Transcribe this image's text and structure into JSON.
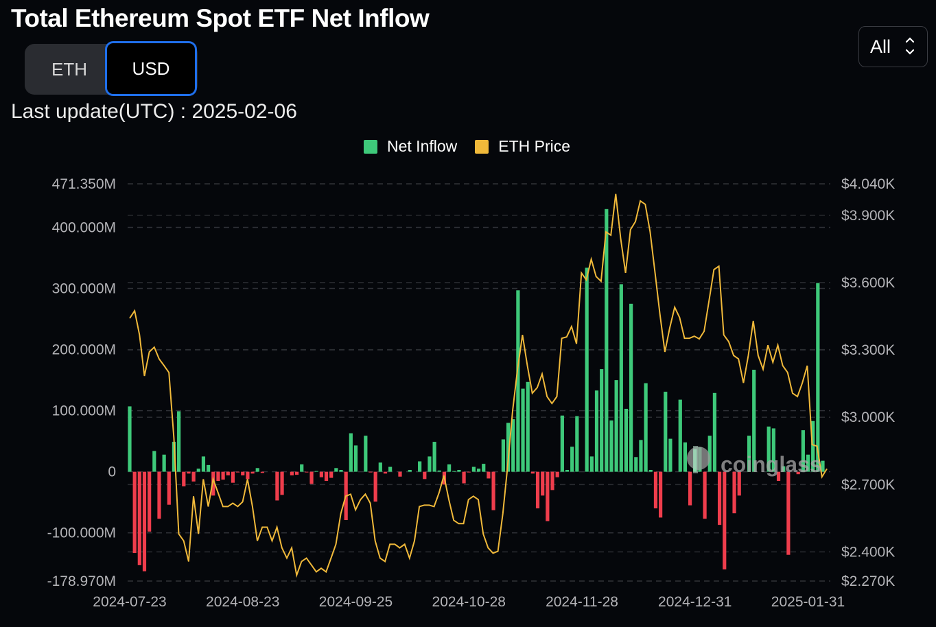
{
  "header": {
    "title": "Total Ethereum Spot ETF Net Inflow",
    "toggle": {
      "options": [
        "ETH",
        "USD"
      ],
      "selected": "USD"
    },
    "range_select": {
      "value": "All"
    },
    "last_update": "Last update(UTC) : 2025-02-06"
  },
  "colors": {
    "inflow_positive": "#3ec97a",
    "inflow_negative": "#ef3d4c",
    "price": "#f0b93a",
    "accent": "#1f6feb",
    "background": "#05070b"
  },
  "watermark": "coinglass",
  "chart_data": {
    "type": "bar",
    "title": "Total Ethereum Spot ETF Net Inflow",
    "legend": [
      {
        "name": "Net Inflow",
        "color": "#3ec97a"
      },
      {
        "name": "ETH Price",
        "color": "#f0b93a"
      }
    ],
    "legend_position": "top-center",
    "grid": true,
    "x_ticks": [
      {
        "label": "2024-07-23",
        "index": 0
      },
      {
        "label": "2024-08-23",
        "index": 23
      },
      {
        "label": "2024-09-25",
        "index": 46
      },
      {
        "label": "2024-10-28",
        "index": 69
      },
      {
        "label": "2024-11-28",
        "index": 92
      },
      {
        "label": "2024-12-31",
        "index": 115
      },
      {
        "label": "2025-01-31",
        "index": 138
      }
    ],
    "y_left": {
      "unit": "USD (M)",
      "range": [
        -178.97,
        471.35
      ],
      "ticks": [
        {
          "value": 471.35,
          "label": "471.350M"
        },
        {
          "value": 400,
          "label": "400.000M"
        },
        {
          "value": 300,
          "label": "300.000M"
        },
        {
          "value": 200,
          "label": "200.000M"
        },
        {
          "value": 100,
          "label": "100.000M"
        },
        {
          "value": 0,
          "label": "0"
        },
        {
          "value": -100,
          "label": "-100.000M"
        },
        {
          "value": -178.97,
          "label": "-178.970M"
        }
      ]
    },
    "y_right": {
      "unit": "USD",
      "range": [
        2270,
        4040
      ],
      "ticks": [
        {
          "value": 4040,
          "label": "$4.040K"
        },
        {
          "value": 3900,
          "label": "$3.900K"
        },
        {
          "value": 3600,
          "label": "$3.600K"
        },
        {
          "value": 3300,
          "label": "$3.300K"
        },
        {
          "value": 3000,
          "label": "$3.000K"
        },
        {
          "value": 2700,
          "label": "$2.700K"
        },
        {
          "value": 2400,
          "label": "$2.400K"
        },
        {
          "value": 2270,
          "label": "$2.270K"
        }
      ]
    },
    "series": [
      {
        "name": "Net Inflow",
        "type": "bar",
        "values": [
          107,
          -133,
          -153,
          -163,
          -98,
          34,
          -77,
          28,
          -54,
          49,
          99,
          -24,
          -3,
          -16,
          5,
          25,
          11,
          -39,
          -15,
          -13,
          -6,
          -18,
          -1,
          -6,
          -12,
          -3,
          6,
          -2,
          0,
          0,
          -47,
          -38,
          0,
          -6,
          -5,
          12,
          -0.5,
          -20,
          1,
          -9,
          -15,
          -10,
          6,
          3,
          -79,
          63,
          43,
          0,
          59,
          -0.5,
          -49,
          15,
          -3,
          8,
          0,
          -8,
          0,
          3,
          0,
          17,
          -12,
          25,
          49,
          2,
          -21,
          12,
          1,
          3,
          -19,
          -0.5,
          8,
          5,
          13,
          -11,
          -63,
          0,
          53,
          80,
          86,
          297,
          136,
          147,
          -3,
          -60,
          -39,
          -81,
          -30,
          -9,
          92,
          3,
          41,
          91,
          0,
          334,
          25,
          133,
          168,
          430,
          84,
          150,
          307,
          103,
          275,
          24,
          52,
          145,
          3,
          -60,
          -75,
          131,
          54,
          0,
          118,
          48,
          -55,
          37,
          40,
          -77,
          59,
          129,
          -87,
          -160,
          0,
          -68,
          -39,
          0,
          59,
          167,
          0,
          0,
          74,
          71,
          -15,
          9,
          -136,
          0,
          -4,
          68,
          28,
          83,
          309,
          18
        ]
      },
      {
        "name": "ETH Price",
        "type": "line",
        "values": [
          3441,
          3474,
          3367,
          3184,
          3291,
          3312,
          3260,
          3230,
          3199,
          2908,
          2480,
          2449,
          2357,
          2648,
          2480,
          2724,
          2602,
          2724,
          2663,
          2602,
          2602,
          2617,
          2602,
          2623,
          2724,
          2602,
          2449,
          2510,
          2510,
          2449,
          2510,
          2418,
          2372,
          2418,
          2296,
          2357,
          2372,
          2342,
          2311,
          2327,
          2311,
          2372,
          2434,
          2571,
          2648,
          2657,
          2587,
          2633,
          2657,
          2617,
          2449,
          2372,
          2357,
          2434,
          2434,
          2418,
          2434,
          2372,
          2449,
          2602,
          2608,
          2608,
          2602,
          2663,
          2740,
          2633,
          2541,
          2526,
          2526,
          2633,
          2648,
          2633,
          2480,
          2418,
          2394,
          2403,
          2571,
          2786,
          3031,
          3214,
          3367,
          3230,
          3107,
          3132,
          3193,
          3092,
          3061,
          3092,
          3352,
          3358,
          3404,
          3327,
          3643,
          3612,
          3704,
          3627,
          3606,
          3826,
          3811,
          3995,
          3796,
          3643,
          3836,
          3872,
          3964,
          3949,
          3826,
          3643,
          3459,
          3291,
          3398,
          3490,
          3444,
          3352,
          3352,
          3361,
          3349,
          3383,
          3520,
          3658,
          3673,
          3367,
          3337,
          3275,
          3260,
          3153,
          3275,
          3429,
          3275,
          3214,
          3321,
          3245,
          3321,
          3230,
          3199,
          3107,
          3092,
          3153,
          3230,
          2878,
          2871,
          2734,
          2770
        ]
      }
    ]
  }
}
